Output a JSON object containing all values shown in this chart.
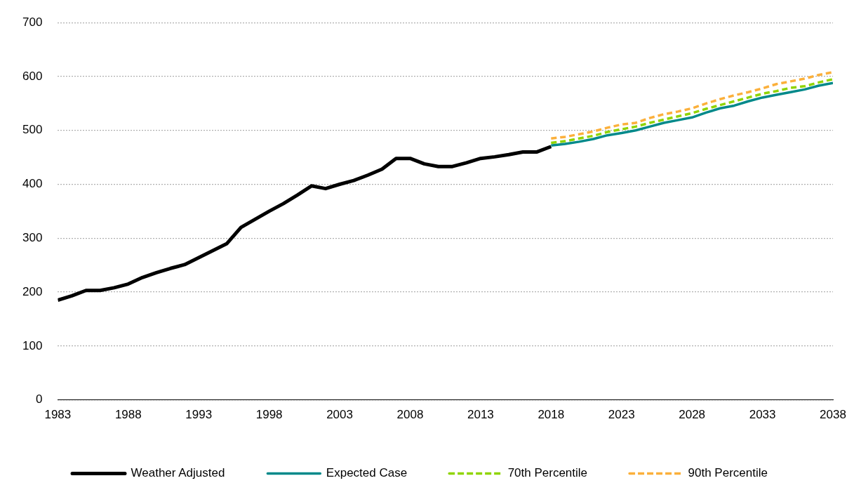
{
  "chart_data": {
    "type": "line",
    "xlim": [
      1983,
      2038
    ],
    "xticks": [
      1983,
      1988,
      1993,
      1998,
      2003,
      2008,
      2013,
      2018,
      2023,
      2028,
      2033,
      2038
    ],
    "ylim": [
      0,
      700
    ],
    "yticks": [
      0,
      100,
      200,
      300,
      400,
      500,
      600,
      700
    ],
    "grid": "y",
    "legend": "bottom",
    "marker": "none",
    "series": [
      {
        "name": "Weather Adjusted",
        "color": "#000000",
        "line_style": "solid",
        "x": [
          1983,
          1984,
          1985,
          1986,
          1987,
          1988,
          1989,
          1990,
          1991,
          1992,
          1993,
          1994,
          1995,
          1996,
          1997,
          1998,
          1999,
          2000,
          2001,
          2002,
          2003,
          2004,
          2005,
          2006,
          2007,
          2008,
          2009,
          2010,
          2011,
          2012,
          2013,
          2014,
          2015,
          2016,
          2017,
          2018
        ],
        "values": [
          185,
          193,
          203,
          203,
          208,
          215,
          227,
          236,
          244,
          251,
          264,
          277,
          290,
          320,
          335,
          350,
          364,
          380,
          397,
          392,
          400,
          407,
          417,
          428,
          448,
          448,
          438,
          433,
          433,
          440,
          448,
          451,
          455,
          460,
          460,
          470
        ]
      },
      {
        "name": "Expected Case",
        "color": "#00898a",
        "line_style": "solid",
        "x": [
          2018,
          2019,
          2020,
          2021,
          2022,
          2023,
          2024,
          2025,
          2026,
          2027,
          2028,
          2029,
          2030,
          2031,
          2032,
          2033,
          2034,
          2035,
          2036,
          2037,
          2038
        ],
        "values": [
          472,
          475,
          479,
          484,
          491,
          495,
          500,
          507,
          514,
          519,
          524,
          533,
          541,
          546,
          554,
          561,
          566,
          571,
          576,
          583,
          588
        ]
      },
      {
        "name": "70th Percentile",
        "color": "#8fd400",
        "line_style": "dashed",
        "x": [
          2018,
          2019,
          2020,
          2021,
          2022,
          2023,
          2024,
          2025,
          2026,
          2027,
          2028,
          2029,
          2030,
          2031,
          2032,
          2033,
          2034,
          2035,
          2036,
          2037,
          2038
        ],
        "values": [
          477,
          480,
          485,
          490,
          497,
          502,
          507,
          514,
          520,
          526,
          532,
          540,
          547,
          554,
          561,
          568,
          573,
          579,
          582,
          589,
          595
        ]
      },
      {
        "name": "90th Percentile",
        "color": "#fbb03b",
        "line_style": "dashed",
        "x": [
          2018,
          2019,
          2020,
          2021,
          2022,
          2023,
          2024,
          2025,
          2026,
          2027,
          2028,
          2029,
          2030,
          2031,
          2032,
          2033,
          2034,
          2035,
          2036,
          2037,
          2038
        ],
        "values": [
          485,
          488,
          493,
          498,
          505,
          511,
          514,
          523,
          530,
          535,
          541,
          550,
          558,
          565,
          571,
          578,
          586,
          591,
          596,
          603,
          608
        ]
      }
    ]
  }
}
